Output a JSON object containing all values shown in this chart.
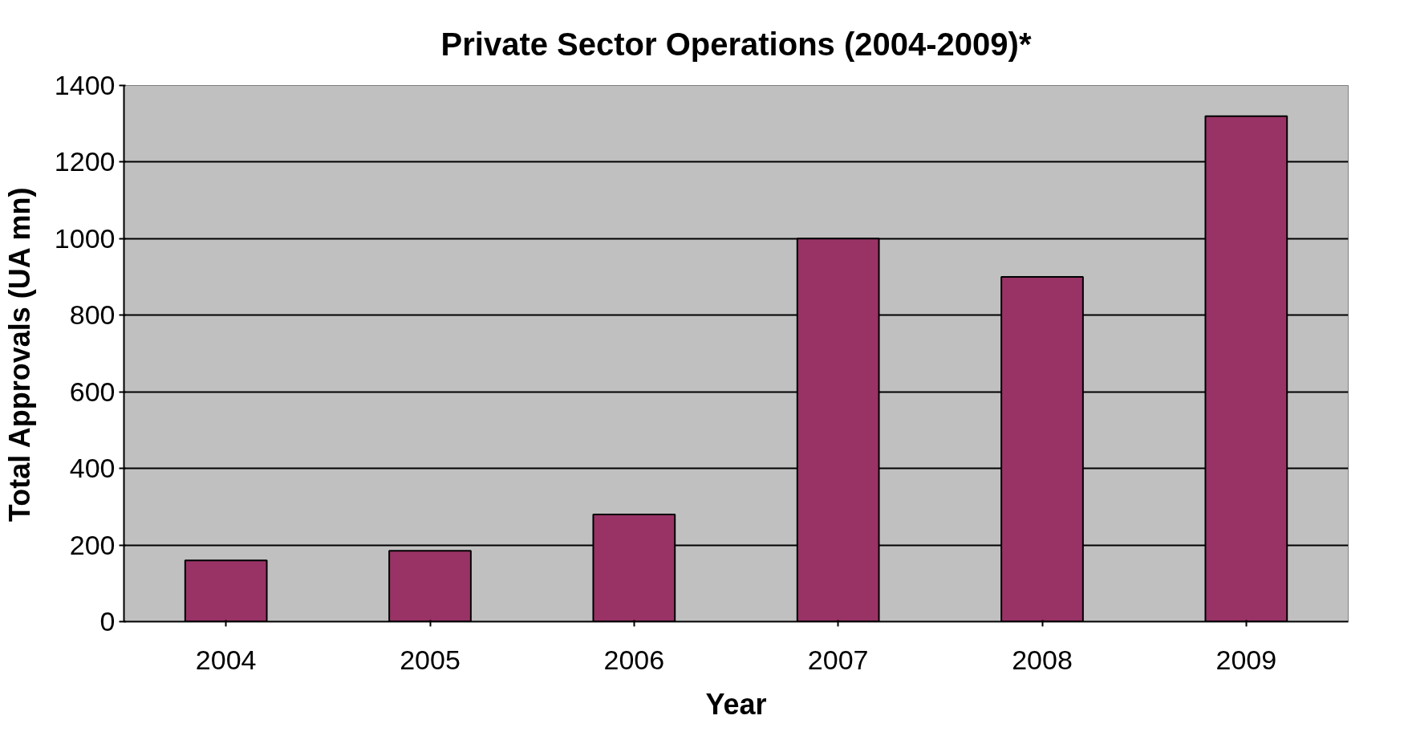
{
  "chart_data": {
    "type": "bar",
    "title": "Private Sector Operations (2004-2009)*",
    "xlabel": "Year",
    "ylabel": "Total Approvals (UA mn)",
    "categories": [
      "2004",
      "2005",
      "2006",
      "2007",
      "2008",
      "2009"
    ],
    "values": [
      160,
      185,
      280,
      1000,
      900,
      1320
    ],
    "color": "#993366",
    "ylim": [
      0,
      1400
    ],
    "yticks": [
      0,
      200,
      400,
      600,
      800,
      1000,
      1200,
      1400
    ],
    "grid": "y"
  }
}
